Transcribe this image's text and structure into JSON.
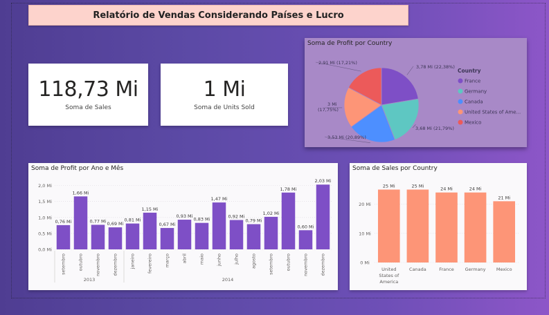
{
  "header": {
    "title": "Relatório de Vendas Considerando Países e Lucro"
  },
  "kpis": [
    {
      "value": "118,73 Mi",
      "label": "Soma de  Sales"
    },
    {
      "value": "1 Mi",
      "label": "Soma de Units Sold"
    }
  ],
  "colors": {
    "purple": "#7e4fc6",
    "salmon": "#fd9577",
    "france": "#7e4fc6",
    "germany": "#5ec7c2",
    "canada": "#4d8fff",
    "usa": "#fd9577",
    "mexico": "#ec5a5a"
  },
  "chart_data": [
    {
      "type": "pie",
      "title": "Soma de Profit por Country",
      "legend_title": "Country",
      "legend_position": "right",
      "slices": [
        {
          "name": "France",
          "value": 3.78,
          "label": "3,78 Mi (22,38%)",
          "color": "#7e4fc6"
        },
        {
          "name": "Germany",
          "value": 3.68,
          "label": "3,68 Mi (21,79%)",
          "color": "#5ec7c2"
        },
        {
          "name": "Canada",
          "value": 3.53,
          "label": "3,53 Mi (20,89%)",
          "color": "#4d8fff"
        },
        {
          "name": "United States of America",
          "legend_label": "United States of Ame...",
          "value": 3.0,
          "label_line1": "3 Mi",
          "label_line2": "(17,75%)",
          "color": "#fd9577"
        },
        {
          "name": "Mexico",
          "value": 2.91,
          "label": "2,91 Mi (17,21%)",
          "color": "#ec5a5a"
        }
      ]
    },
    {
      "type": "bar",
      "title": "Soma de Profit por Ano e Mês",
      "ylim": [
        0,
        2.1
      ],
      "yticks": [
        {
          "v": 0,
          "label": "0,0 Mi"
        },
        {
          "v": 0.5,
          "label": "0,5 Mi"
        },
        {
          "v": 1.0,
          "label": "1,0 Mi"
        },
        {
          "v": 1.5,
          "label": "1,5 Mi"
        },
        {
          "v": 2.0,
          "label": "2,0 Mi"
        }
      ],
      "categories": [
        "setembro",
        "outubro",
        "novembro",
        "dezembro",
        "janeiro",
        "fevereiro",
        "março",
        "abril",
        "maio",
        "junho",
        "julho",
        "agosto",
        "setembro",
        "outubro",
        "novembro",
        "dezembro"
      ],
      "values": [
        0.76,
        1.66,
        0.77,
        0.69,
        0.81,
        1.15,
        0.67,
        0.93,
        0.83,
        1.47,
        0.92,
        0.79,
        1.02,
        1.78,
        0.6,
        2.03
      ],
      "labels": [
        "0,76 Mi",
        "1,66 Mi",
        "0,77 Mi",
        "0,69 Mi",
        "0,81 Mi",
        "1,15 Mi",
        "0,67 Mi",
        "0,93 Mi",
        "0,83 Mi",
        "1,47 Mi",
        "0,92 Mi",
        "0,79 Mi",
        "1,02 Mi",
        "1,78 Mi",
        "0,60 Mi",
        "2,03 Mi"
      ],
      "years": [
        {
          "label": "2013",
          "start": 0,
          "count": 4
        },
        {
          "label": "2014",
          "start": 4,
          "count": 12
        }
      ],
      "color": "#7e4fc6"
    },
    {
      "type": "bar",
      "title": "Soma de Sales por Country",
      "ylim": [
        0,
        27
      ],
      "yticks": [
        {
          "v": 0,
          "label": "0 Mi"
        },
        {
          "v": 10,
          "label": "10 Mi"
        },
        {
          "v": 20,
          "label": "20 Mi"
        }
      ],
      "categories": [
        "United States of America",
        "Canada",
        "France",
        "Germany",
        "Mexico"
      ],
      "values": [
        25,
        25,
        24,
        24,
        21
      ],
      "labels": [
        "25 Mi",
        "25 Mi",
        "24 Mi",
        "24 Mi",
        "21 Mi"
      ],
      "color": "#fd9577"
    }
  ]
}
